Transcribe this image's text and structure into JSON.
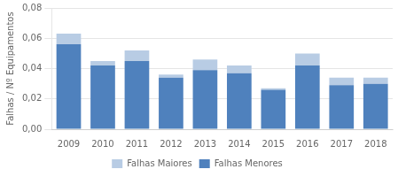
{
  "chart_data": {
    "type": "bar",
    "stacked": true,
    "categories": [
      "2009",
      "2010",
      "2011",
      "2012",
      "2013",
      "2014",
      "2015",
      "2016",
      "2017",
      "2018"
    ],
    "series": [
      {
        "name": "Falhas Menores",
        "color": "#4F81BD",
        "values": [
          0.056,
          0.042,
          0.045,
          0.034,
          0.039,
          0.037,
          0.026,
          0.042,
          0.029,
          0.03
        ]
      },
      {
        "name": "Falhas Maiores",
        "color": "#B8CCE4",
        "values": [
          0.007,
          0.003,
          0.007,
          0.002,
          0.007,
          0.005,
          0.001,
          0.008,
          0.005,
          0.004
        ]
      }
    ],
    "ylabel": "Falhas / Nº Equipamentos",
    "ylim": [
      0,
      0.08
    ],
    "yticks": [
      {
        "value": 0,
        "label": "0,00"
      },
      {
        "value": 0.02,
        "label": "0,02"
      },
      {
        "value": 0.04,
        "label": "0,04"
      },
      {
        "value": 0.06,
        "label": "0,06"
      },
      {
        "value": 0.08,
        "label": "0,08"
      }
    ],
    "grid": true,
    "legend": "bottom"
  }
}
